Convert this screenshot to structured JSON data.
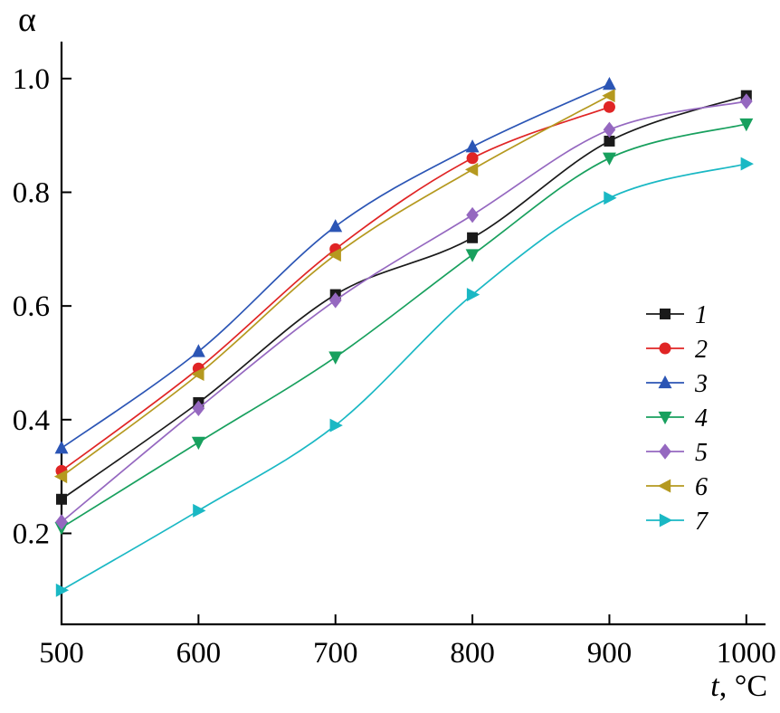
{
  "chart_data": {
    "type": "line",
    "title": "",
    "xlabel": "t, °C",
    "xlabel_italic": "t",
    "xlabel_rest": ", °C",
    "ylabel": "α",
    "xlim": [
      500,
      1014
    ],
    "ylim": [
      0.04,
      1.065
    ],
    "xticks": [
      500,
      600,
      700,
      800,
      900,
      1000
    ],
    "yticks": [
      0.2,
      0.4,
      0.6,
      0.8,
      1.0
    ],
    "grid": false,
    "legend_position": "inside-right-middle",
    "x": [
      500,
      600,
      700,
      800,
      900,
      1000
    ],
    "series": [
      {
        "name": "1",
        "marker": "square",
        "color": "#1a1a1a",
        "values": [
          0.26,
          0.43,
          0.62,
          0.72,
          0.89,
          0.97
        ]
      },
      {
        "name": "2",
        "marker": "circle",
        "color": "#e02525",
        "values": [
          0.31,
          0.49,
          0.7,
          0.86,
          0.95,
          null
        ]
      },
      {
        "name": "3",
        "marker": "triangle-up",
        "color": "#2b55b5",
        "values": [
          0.35,
          0.52,
          0.74,
          0.88,
          0.99,
          null
        ]
      },
      {
        "name": "4",
        "marker": "triangle-down",
        "color": "#18a05e",
        "values": [
          0.21,
          0.36,
          0.51,
          0.69,
          0.86,
          0.92
        ]
      },
      {
        "name": "5",
        "marker": "diamond",
        "color": "#9568c0",
        "values": [
          0.22,
          0.42,
          0.61,
          0.76,
          0.91,
          0.96
        ]
      },
      {
        "name": "6",
        "marker": "triangle-left",
        "color": "#b5991f",
        "values": [
          0.3,
          0.48,
          0.69,
          0.84,
          0.97,
          null
        ]
      },
      {
        "name": "7",
        "marker": "triangle-right",
        "color": "#1ab8c4",
        "values": [
          0.1,
          0.24,
          0.39,
          0.62,
          0.79,
          0.85
        ]
      }
    ]
  }
}
